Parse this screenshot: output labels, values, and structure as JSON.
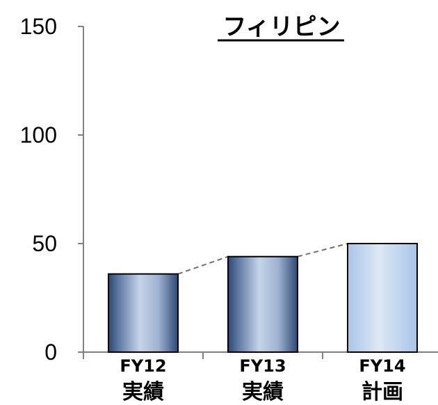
{
  "chart_data": {
    "type": "bar",
    "title": "フィリピン",
    "categories": [
      {
        "line1": "FY12",
        "line2": "実績"
      },
      {
        "line1": "FY13",
        "line2": "実績"
      },
      {
        "line1": "FY14",
        "line2": "計画"
      }
    ],
    "values": [
      36,
      44,
      50
    ],
    "yticks": [
      "0",
      "50",
      "100",
      "150"
    ],
    "ylim": [
      0,
      150
    ],
    "grid": false,
    "legend": "none",
    "connector_lines": "dashed",
    "colors": {
      "bar_dark": "#2b4a78",
      "bar_light": "#c6d4ea",
      "bar_plan_edge": "#a8c4e8",
      "bar_plan_center": "#dfe8f4",
      "axis": "#7f7f7f",
      "connector": "#6f6f6f"
    }
  }
}
